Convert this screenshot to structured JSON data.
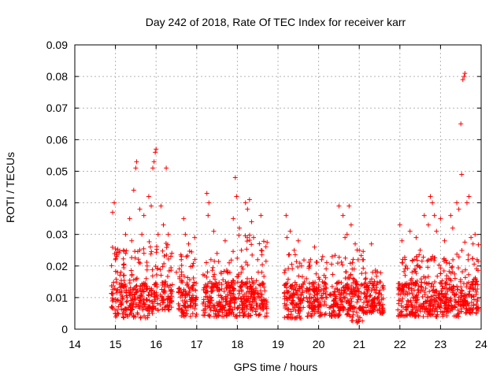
{
  "chart_data": {
    "type": "scatter",
    "title": "Day 242 of 2018, Rate Of TEC Index for receiver karr",
    "xlabel": "GPS time / hours",
    "ylabel": "ROTI / TECUs",
    "xlim": [
      14,
      24
    ],
    "ylim": [
      0,
      0.09
    ],
    "xticks": [
      "14",
      "15",
      "16",
      "17",
      "18",
      "19",
      "20",
      "21",
      "22",
      "23",
      "24"
    ],
    "yticks": [
      "0",
      "0.01",
      "0.02",
      "0.03",
      "0.04",
      "0.05",
      "0.06",
      "0.07",
      "0.08",
      "0.09"
    ],
    "grid": true,
    "marker": "+",
    "series": [
      {
        "name": "ROTI",
        "color": "#ff0000",
        "points": [
          [
            14.93,
            0.037
          ],
          [
            14.97,
            0.04
          ],
          [
            15.0,
            0.022
          ],
          [
            15.05,
            0.018
          ],
          [
            15.1,
            0.012
          ],
          [
            15.15,
            0.008
          ],
          [
            15.2,
            0.025
          ],
          [
            15.25,
            0.03
          ],
          [
            15.3,
            0.004
          ],
          [
            15.35,
            0.035
          ],
          [
            15.4,
            0.028
          ],
          [
            15.45,
            0.044
          ],
          [
            15.5,
            0.051
          ],
          [
            15.52,
            0.053
          ],
          [
            15.6,
            0.038
          ],
          [
            15.65,
            0.03
          ],
          [
            15.7,
            0.036
          ],
          [
            15.78,
            0.02
          ],
          [
            15.82,
            0.042
          ],
          [
            15.88,
            0.039
          ],
          [
            15.92,
            0.051
          ],
          [
            15.95,
            0.053
          ],
          [
            15.98,
            0.056
          ],
          [
            16.0,
            0.057
          ],
          [
            16.05,
            0.03
          ],
          [
            16.12,
            0.039
          ],
          [
            16.18,
            0.033
          ],
          [
            16.25,
            0.051
          ],
          [
            16.3,
            0.03
          ],
          [
            16.35,
            0.012
          ],
          [
            16.5,
            0.018
          ],
          [
            16.55,
            0.008
          ],
          [
            16.62,
            0.022
          ],
          [
            16.68,
            0.035
          ],
          [
            16.72,
            0.03
          ],
          [
            16.8,
            0.027
          ],
          [
            16.9,
            0.02
          ],
          [
            16.95,
            0.029
          ],
          [
            17.0,
            0.01
          ],
          [
            17.25,
            0.043
          ],
          [
            17.28,
            0.036
          ],
          [
            17.3,
            0.04
          ],
          [
            17.35,
            0.022
          ],
          [
            17.42,
            0.031
          ],
          [
            17.5,
            0.024
          ],
          [
            17.6,
            0.018
          ],
          [
            17.7,
            0.028
          ],
          [
            17.8,
            0.021
          ],
          [
            17.9,
            0.035
          ],
          [
            17.95,
            0.048
          ],
          [
            17.98,
            0.042
          ],
          [
            18.05,
            0.032
          ],
          [
            18.1,
            0.025
          ],
          [
            18.2,
            0.04
          ],
          [
            18.25,
            0.038
          ],
          [
            18.3,
            0.041
          ],
          [
            18.35,
            0.034
          ],
          [
            18.4,
            0.029
          ],
          [
            18.5,
            0.022
          ],
          [
            18.58,
            0.036
          ],
          [
            18.6,
            0.018
          ],
          [
            19.2,
            0.036
          ],
          [
            19.22,
            0.029
          ],
          [
            19.3,
            0.031
          ],
          [
            19.4,
            0.025
          ],
          [
            19.5,
            0.028
          ],
          [
            19.58,
            0.02
          ],
          [
            19.7,
            0.016
          ],
          [
            19.8,
            0.022
          ],
          [
            19.9,
            0.026
          ],
          [
            20.0,
            0.014
          ],
          [
            20.1,
            0.023
          ],
          [
            20.2,
            0.01
          ],
          [
            20.5,
            0.039
          ],
          [
            20.6,
            0.036
          ],
          [
            20.65,
            0.029
          ],
          [
            20.7,
            0.03
          ],
          [
            20.75,
            0.039
          ],
          [
            20.8,
            0.033
          ],
          [
            20.9,
            0.027
          ],
          [
            21.0,
            0.025
          ],
          [
            21.1,
            0.022
          ],
          [
            21.2,
            0.012
          ],
          [
            21.3,
            0.027
          ],
          [
            21.4,
            0.018
          ],
          [
            21.5,
            0.015
          ],
          [
            22.0,
            0.033
          ],
          [
            22.05,
            0.028
          ],
          [
            22.15,
            0.02
          ],
          [
            22.25,
            0.031
          ],
          [
            22.3,
            0.018
          ],
          [
            22.4,
            0.029
          ],
          [
            22.5,
            0.025
          ],
          [
            22.6,
            0.036
          ],
          [
            22.7,
            0.033
          ],
          [
            22.75,
            0.042
          ],
          [
            22.8,
            0.04
          ],
          [
            22.85,
            0.036
          ],
          [
            22.9,
            0.031
          ],
          [
            23.0,
            0.035
          ],
          [
            23.1,
            0.028
          ],
          [
            23.15,
            0.021
          ],
          [
            23.25,
            0.036
          ],
          [
            23.3,
            0.032
          ],
          [
            23.4,
            0.04
          ],
          [
            23.45,
            0.038
          ],
          [
            23.5,
            0.065
          ],
          [
            23.52,
            0.049
          ],
          [
            23.55,
            0.079
          ],
          [
            23.58,
            0.08
          ],
          [
            23.6,
            0.081
          ],
          [
            23.65,
            0.04
          ],
          [
            23.7,
            0.042
          ],
          [
            23.75,
            0.029
          ],
          [
            23.8,
            0.027
          ],
          [
            23.85,
            0.03
          ],
          [
            23.9,
            0.022
          ]
        ],
        "bands": [
          [
            14.9,
            15.8,
            0.0035,
            0.026
          ],
          [
            15.8,
            16.05,
            0.005,
            0.03
          ],
          [
            16.1,
            16.4,
            0.006,
            0.028
          ],
          [
            16.55,
            17.0,
            0.004,
            0.026
          ],
          [
            17.15,
            17.85,
            0.004,
            0.022
          ],
          [
            17.85,
            18.75,
            0.004,
            0.03
          ],
          [
            19.15,
            19.65,
            0.0035,
            0.024
          ],
          [
            19.7,
            20.2,
            0.004,
            0.022
          ],
          [
            20.25,
            20.8,
            0.004,
            0.024
          ],
          [
            20.8,
            21.1,
            0.002,
            0.026
          ],
          [
            21.1,
            21.6,
            0.005,
            0.02
          ],
          [
            21.95,
            22.3,
            0.004,
            0.024
          ],
          [
            22.3,
            22.95,
            0.004,
            0.024
          ],
          [
            22.95,
            23.5,
            0.004,
            0.024
          ],
          [
            23.5,
            23.95,
            0.005,
            0.028
          ]
        ]
      }
    ]
  }
}
